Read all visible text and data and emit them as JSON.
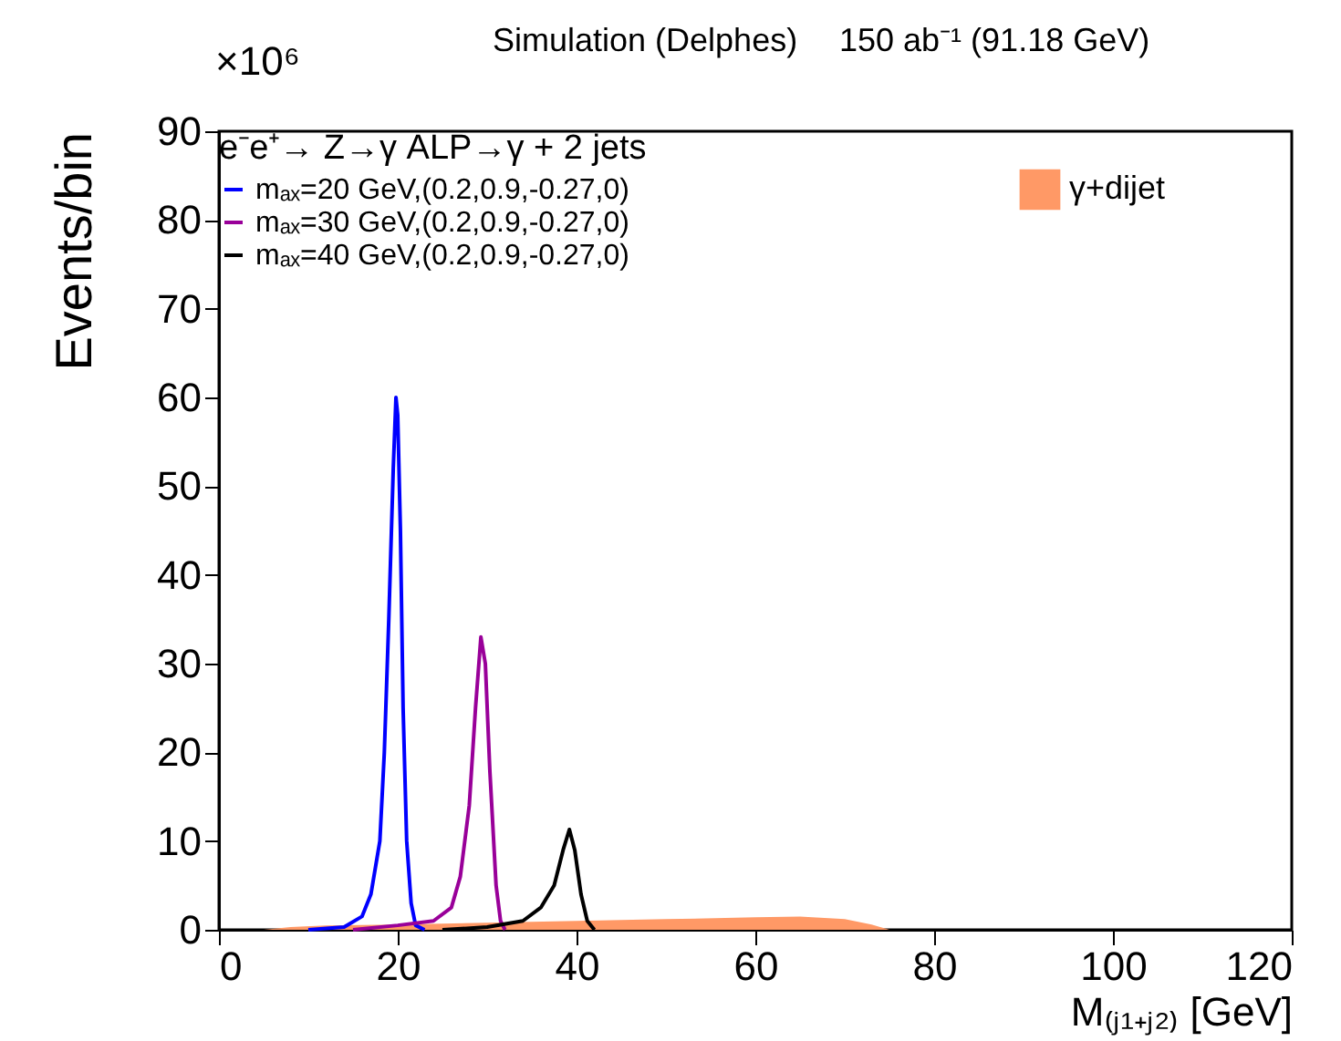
{
  "chart_data": {
    "type": "line",
    "xlabel": "M₍ⱼ₁₊ⱼ₂₎ [GeV]",
    "ylabel": "Events/bin",
    "legend_title": "e⁻e⁺→ Z→γ ALP→γ + 2 jets",
    "annotations": [
      "×10⁶",
      "Simulation (Delphes)",
      "150 ab⁻¹ (91.18 GeV)"
    ],
    "xlim": [
      0,
      120
    ],
    "xticks": [
      0,
      20,
      40,
      60,
      80,
      100,
      120
    ],
    "ylim": [
      0,
      90
    ],
    "yticks": [
      0,
      10,
      20,
      30,
      40,
      50,
      60,
      70,
      80,
      90
    ],
    "grid": false,
    "legend": "top left",
    "marker": "none",
    "line_style": "solid",
    "series": [
      {
        "name": "mₐₓ=20 GeV,(0.2,0.9,-0.27,0)",
        "color": "#0000ff",
        "x": [
          10,
          14,
          16,
          17,
          18,
          18.5,
          19,
          19.5,
          19.8,
          20,
          20.3,
          20.6,
          21,
          21.5,
          22,
          23
        ],
        "values": [
          0,
          0.3,
          1.5,
          4,
          10,
          20,
          35,
          52,
          60,
          58,
          45,
          25,
          10,
          3,
          0.5,
          0
        ]
      },
      {
        "name": "mₐₓ=30 GeV,(0.2,0.9,-0.27,0)",
        "color": "#990099",
        "x": [
          15,
          20,
          24,
          26,
          27,
          28,
          28.7,
          29.3,
          29.8,
          30.3,
          31,
          31.5,
          32
        ],
        "values": [
          0,
          0.5,
          1,
          2.5,
          6,
          14,
          25,
          33,
          30,
          18,
          5,
          1,
          0
        ]
      },
      {
        "name": "mₐₓ=40 GeV,(0.2,0.9,-0.27,0)",
        "color": "#000000",
        "x": [
          25,
          30,
          34,
          36,
          37.5,
          38.5,
          39.2,
          39.8,
          40.5,
          41.2,
          42
        ],
        "values": [
          0,
          0.3,
          1,
          2.5,
          5,
          9,
          11.3,
          9,
          4,
          1,
          0
        ]
      },
      {
        "name": "γ+dijet",
        "type": "area",
        "color": "#ff9966",
        "x": [
          5,
          8,
          12,
          20,
          30,
          40,
          50,
          60,
          65,
          70,
          73,
          75
        ],
        "values": [
          0,
          0.3,
          0.5,
          0.6,
          0.8,
          1,
          1.2,
          1.4,
          1.5,
          1.2,
          0.6,
          0
        ]
      }
    ]
  }
}
